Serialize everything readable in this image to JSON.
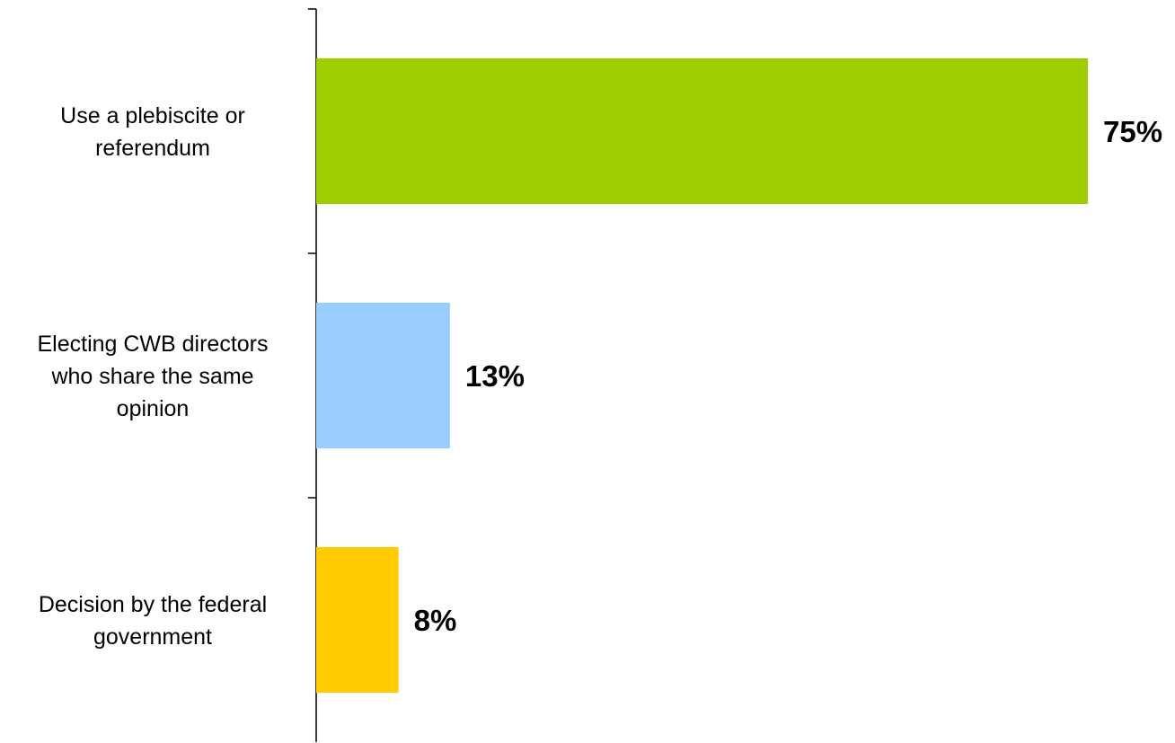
{
  "chart_data": {
    "type": "bar",
    "orientation": "horizontal",
    "categories": [
      "Use a plebiscite or referendum",
      "Electing CWB directors who share the same opinion",
      "Decision by the federal government"
    ],
    "category_label_lines": [
      [
        "Use a plebiscite or",
        "referendum"
      ],
      [
        "Electing CWB directors",
        "who share the same",
        "opinion"
      ],
      [
        "Decision by the federal",
        "government"
      ]
    ],
    "values": [
      75,
      13,
      8
    ],
    "value_labels": [
      "75%",
      "13%",
      "8%"
    ],
    "colors": [
      "#9ecd00",
      "#99ccff",
      "#ffcc00"
    ],
    "xlim": [
      0,
      75
    ],
    "grid": false,
    "legend": "none"
  }
}
